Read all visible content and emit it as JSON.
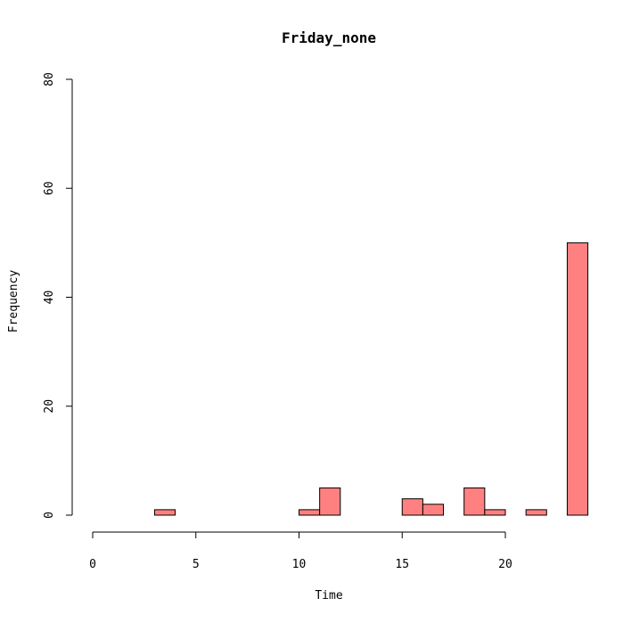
{
  "chart_data": {
    "type": "bar",
    "title": "Friday_none",
    "xlabel": "Time",
    "ylabel": "Frequency",
    "bar_color": "#ff8080",
    "xlim": [
      0,
      24
    ],
    "ylim": [
      0,
      80
    ],
    "x_ticks": [
      0,
      5,
      10,
      15,
      20
    ],
    "y_ticks": [
      0,
      20,
      40,
      60,
      80
    ],
    "bin_width": 1,
    "bins": [
      {
        "start": 0,
        "value": 0
      },
      {
        "start": 1,
        "value": 0
      },
      {
        "start": 2,
        "value": 0
      },
      {
        "start": 3,
        "value": 1
      },
      {
        "start": 4,
        "value": 0
      },
      {
        "start": 5,
        "value": 0
      },
      {
        "start": 6,
        "value": 0
      },
      {
        "start": 7,
        "value": 0
      },
      {
        "start": 8,
        "value": 0
      },
      {
        "start": 9,
        "value": 0
      },
      {
        "start": 10,
        "value": 1
      },
      {
        "start": 11,
        "value": 5
      },
      {
        "start": 12,
        "value": 0
      },
      {
        "start": 13,
        "value": 0
      },
      {
        "start": 14,
        "value": 0
      },
      {
        "start": 15,
        "value": 3
      },
      {
        "start": 16,
        "value": 2
      },
      {
        "start": 17,
        "value": 0
      },
      {
        "start": 18,
        "value": 5
      },
      {
        "start": 19,
        "value": 1
      },
      {
        "start": 20,
        "value": 0
      },
      {
        "start": 21,
        "value": 1
      },
      {
        "start": 22,
        "value": 0
      },
      {
        "start": 23,
        "value": 50
      }
    ]
  }
}
